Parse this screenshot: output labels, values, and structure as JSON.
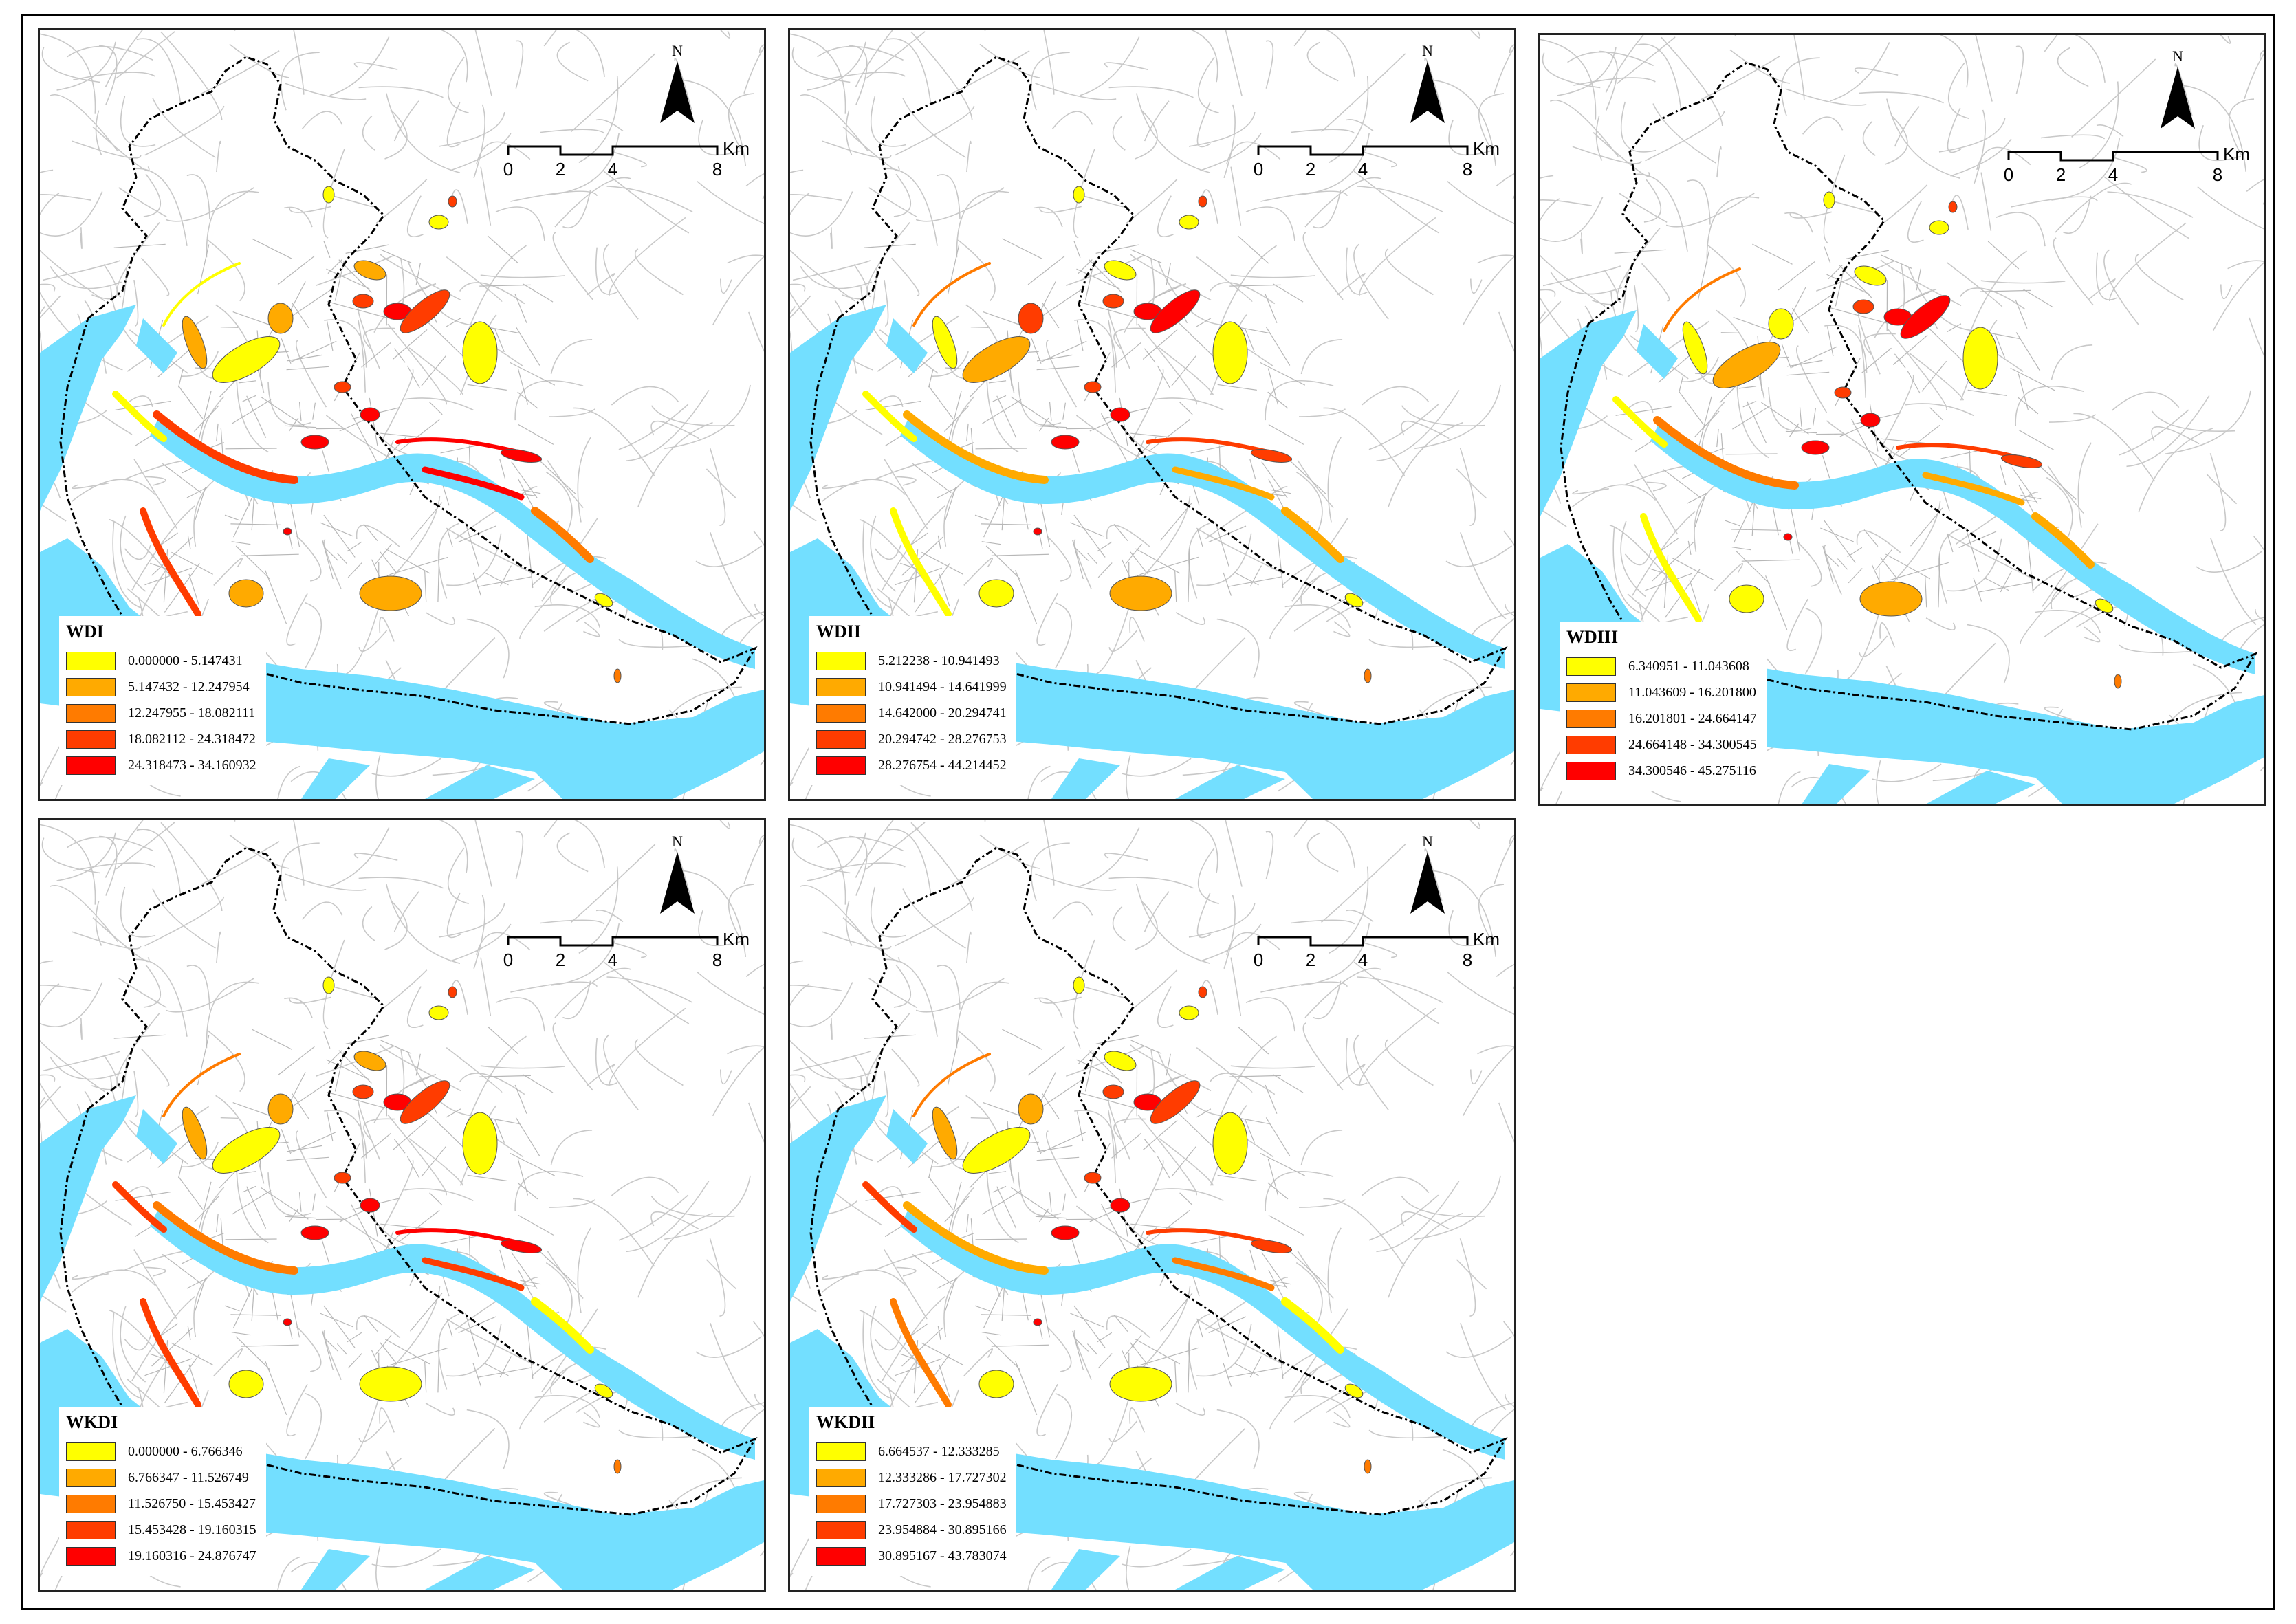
{
  "colors": {
    "class1": "#ffff00",
    "class2": "#ffaa00",
    "class3": "#ff7b00",
    "class4": "#ff3c00",
    "class5": "#ff0000",
    "river": "#73dfff",
    "roads": "#c8c8c8",
    "boundary": "#000000"
  },
  "north_arrow": {
    "letter": "N"
  },
  "scale_bar": {
    "ticks": [
      "0",
      "2",
      "4",
      "8"
    ],
    "unit": "Km"
  },
  "panels": [
    {
      "id": "wdi",
      "legend_title": "WDI",
      "classes": [
        "0.000000 - 5.147431",
        "5.147432 - 12.247954",
        "12.247955 - 18.082111",
        "18.082112 - 24.318472",
        "24.318473 - 34.160932"
      ]
    },
    {
      "id": "wdii",
      "legend_title": "WDII",
      "classes": [
        "5.212238 - 10.941493",
        "10.941494 - 14.641999",
        "14.642000 - 20.294741",
        "20.294742 - 28.276753",
        "28.276754 - 44.214452"
      ]
    },
    {
      "id": "wdiii",
      "legend_title": "WDIII",
      "classes": [
        "6.340951 - 11.043608",
        "11.043609 - 16.201800",
        "16.201801 - 24.664147",
        "24.664148 - 34.300545",
        "34.300546 - 45.275116"
      ]
    },
    {
      "id": "wkdi",
      "legend_title": "WKDI",
      "classes": [
        "0.000000 - 6.766346",
        "6.766347 - 11.526749",
        "11.526750 - 15.453427",
        "15.453428 - 19.160315",
        "19.160316 - 24.876747"
      ]
    },
    {
      "id": "wkdii",
      "legend_title": "WKDII",
      "classes": [
        "6.664537 - 12.333285",
        "12.333286 - 17.727302",
        "17.727303 - 23.954883",
        "23.954884 - 30.895166",
        "30.895167 - 43.783074"
      ]
    }
  ]
}
